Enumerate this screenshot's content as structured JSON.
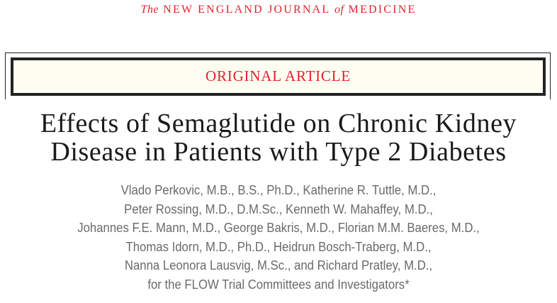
{
  "masthead": {
    "the": "The",
    "part1": "NEW ENGLAND JOURNAL",
    "of": "of",
    "part2": "MEDICINE",
    "color": "#e3202b"
  },
  "section_label": "ORIGINAL ARTICLE",
  "title": {
    "line1": "Effects of Semaglutide on Chronic Kidney",
    "line2": "Disease in Patients with Type 2 Diabetes"
  },
  "authors": [
    "Vlado Perkovic, M.B., B.S., Ph.D., Katherine R. Tuttle, M.D.,",
    "Peter Rossing, M.D., D.M.Sc., Kenneth W. Mahaffey, M.D.,",
    "Johannes F.E. Mann, M.D., George Bakris, M.D., Florian M.M. Baeres, M.D.,",
    "Thomas Idorn, M.D., Ph.D., Heidrun Bosch-Traberg, M.D.,",
    "Nanna Leonora Lausvig, M.Sc., and Richard Pratley, M.D.,",
    "for the FLOW Trial Committees and Investigators*"
  ]
}
